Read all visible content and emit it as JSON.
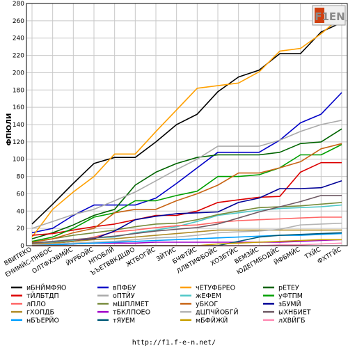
{
  "chart_data": {
    "type": "line",
    "ylabel": "ФПЮЛИ",
    "ylim": [
      0,
      280
    ],
    "yticks": [
      0,
      20,
      40,
      60,
      80,
      100,
      120,
      140,
      160,
      180,
      200,
      220,
      240,
      260,
      280
    ],
    "grid": true,
    "legend_position": "bottom",
    "categories": [
      "ВВИТЕКО",
      "ЕНИМЙС-ПНБОС",
      "ОЛТФХЗВМЙС",
      "ЙУРБОЙС",
      "НПОБЛЙ",
      "ЪЪЕТВВКДЦВО",
      "ЖТБОГЙС",
      "ЗЙТИС",
      "БЧФТЙС",
      "ЛЛВТИФБОЙС",
      "ХОЗБТЙС",
      "ВЕМЗЙС",
      "ЮДЕГМБОДЙС",
      "ЙФБМЙС",
      "ТХЙС",
      "ФХТГЙС"
    ],
    "series": [
      {
        "name": "иБНЙМФЯО",
        "color": "#000000",
        "values": [
          25,
          48,
          72,
          95,
          102,
          102,
          120,
          140,
          152,
          178,
          195,
          203,
          222,
          222,
          247,
          258
        ]
      },
      {
        "name": "вПФБУ",
        "color": "#0000c8",
        "values": [
          15,
          20,
          35,
          47,
          47,
          47,
          55,
          72,
          90,
          108,
          108,
          108,
          122,
          142,
          152,
          177
        ]
      },
      {
        "name": "чЕТУФБРЕО",
        "color": "#ffa000",
        "values": [
          10,
          42,
          62,
          80,
          106,
          106,
          132,
          157,
          182,
          185,
          188,
          201,
          225,
          228,
          245,
          265
        ]
      },
      {
        "name": "рЕТЕУ",
        "color": "#006400",
        "values": [
          8,
          15,
          24,
          35,
          42,
          70,
          85,
          95,
          102,
          105,
          105,
          105,
          108,
          118,
          120,
          135
        ]
      },
      {
        "name": "тЙЛБТДП",
        "color": "#dc0000",
        "values": [
          12,
          14,
          18,
          22,
          25,
          30,
          35,
          35,
          40,
          50,
          53,
          56,
          57,
          85,
          96,
          96
        ]
      },
      {
        "name": "оПТЙУ",
        "color": "#aaaaaa",
        "values": [
          20,
          28,
          36,
          42,
          52,
          62,
          75,
          88,
          100,
          115,
          115,
          115,
          122,
          132,
          140,
          145
        ]
      },
      {
        "name": "жЕФЕМ",
        "color": "#50c8c8",
        "values": [
          3,
          4,
          6,
          9,
          10,
          15,
          18,
          22,
          28,
          35,
          38,
          41,
          43,
          44,
          45,
          47
        ]
      },
      {
        "name": "уФТПМ",
        "color": "#00a000",
        "values": [
          5,
          10,
          20,
          33,
          38,
          52,
          52,
          58,
          63,
          80,
          80,
          82,
          90,
          105,
          105,
          117
        ]
      },
      {
        "name": "лПЛО",
        "color": "#ff6464",
        "values": [
          2,
          3,
          5,
          10,
          16,
          18,
          21,
          23,
          24,
          27,
          29,
          30,
          31,
          32,
          33,
          33
        ]
      },
      {
        "name": "мШПЛМЕТ",
        "color": "#788c3c",
        "values": [
          4,
          8,
          12,
          15,
          18,
          22,
          25,
          26,
          30,
          36,
          40,
          44,
          45,
          46,
          48,
          50
        ]
      },
      {
        "name": "уБКОГ",
        "color": "#c86414",
        "values": [
          4,
          8,
          15,
          20,
          38,
          42,
          42,
          52,
          60,
          70,
          84,
          84,
          90,
          97,
          112,
          118
        ]
      },
      {
        "name": "зБУМЙ",
        "color": "#000096",
        "values": [
          2,
          3,
          5,
          8,
          17,
          30,
          34,
          37,
          38,
          39,
          50,
          55,
          66,
          66,
          67,
          75
        ]
      },
      {
        "name": "гХОПДБ",
        "color": "#b08c28",
        "values": [
          2,
          3,
          5,
          7,
          8,
          10,
          12,
          14,
          16,
          18,
          18,
          18,
          18,
          18,
          18,
          18
        ]
      },
      {
        "name": "тБКЛПОЕО",
        "color": "#a000c8",
        "values": [
          1,
          1,
          2,
          3,
          3,
          3,
          4,
          4,
          4,
          4,
          4,
          4,
          4,
          5,
          6,
          7
        ]
      },
      {
        "name": "дЦПЧЙОБГЙ",
        "color": "#b4b4b4",
        "values": [
          1,
          2,
          3,
          4,
          5,
          7,
          9,
          10,
          12,
          15,
          16,
          17,
          19,
          24,
          25,
          26
        ]
      },
      {
        "name": "ыХНБИЕТ",
        "color": "#6e5a64",
        "values": [
          3,
          5,
          7,
          9,
          11,
          14,
          17,
          19,
          21,
          25,
          32,
          39,
          45,
          51,
          58,
          58
        ]
      },
      {
        "name": "нБЪЕРЙО",
        "color": "#00a0ff",
        "values": [
          0,
          1,
          2,
          3,
          4,
          5,
          6,
          7,
          8,
          9,
          10,
          11,
          12,
          12,
          13,
          14
        ]
      },
      {
        "name": "тЯУЕМ",
        "color": "#005a78",
        "values": [
          0,
          0,
          0,
          0,
          0,
          0,
          0,
          0,
          0,
          0,
          5,
          10,
          12,
          13,
          14,
          15
        ]
      },
      {
        "name": "мБФЙЖЙ",
        "color": "#c8a000",
        "values": [
          0,
          0,
          0,
          0,
          0,
          0,
          0,
          0,
          0,
          2,
          3,
          4,
          5,
          6,
          7,
          7
        ]
      },
      {
        "name": "лХВЙГБ",
        "color": "#ff8cb4",
        "values": [
          0,
          0,
          0,
          0,
          0,
          0,
          0,
          0,
          0,
          0,
          0,
          0,
          1,
          1,
          2,
          3
        ]
      }
    ]
  },
  "logo": {
    "text": "F1EN"
  },
  "footer": {
    "url": "http://f1.f-e-n.net/"
  }
}
